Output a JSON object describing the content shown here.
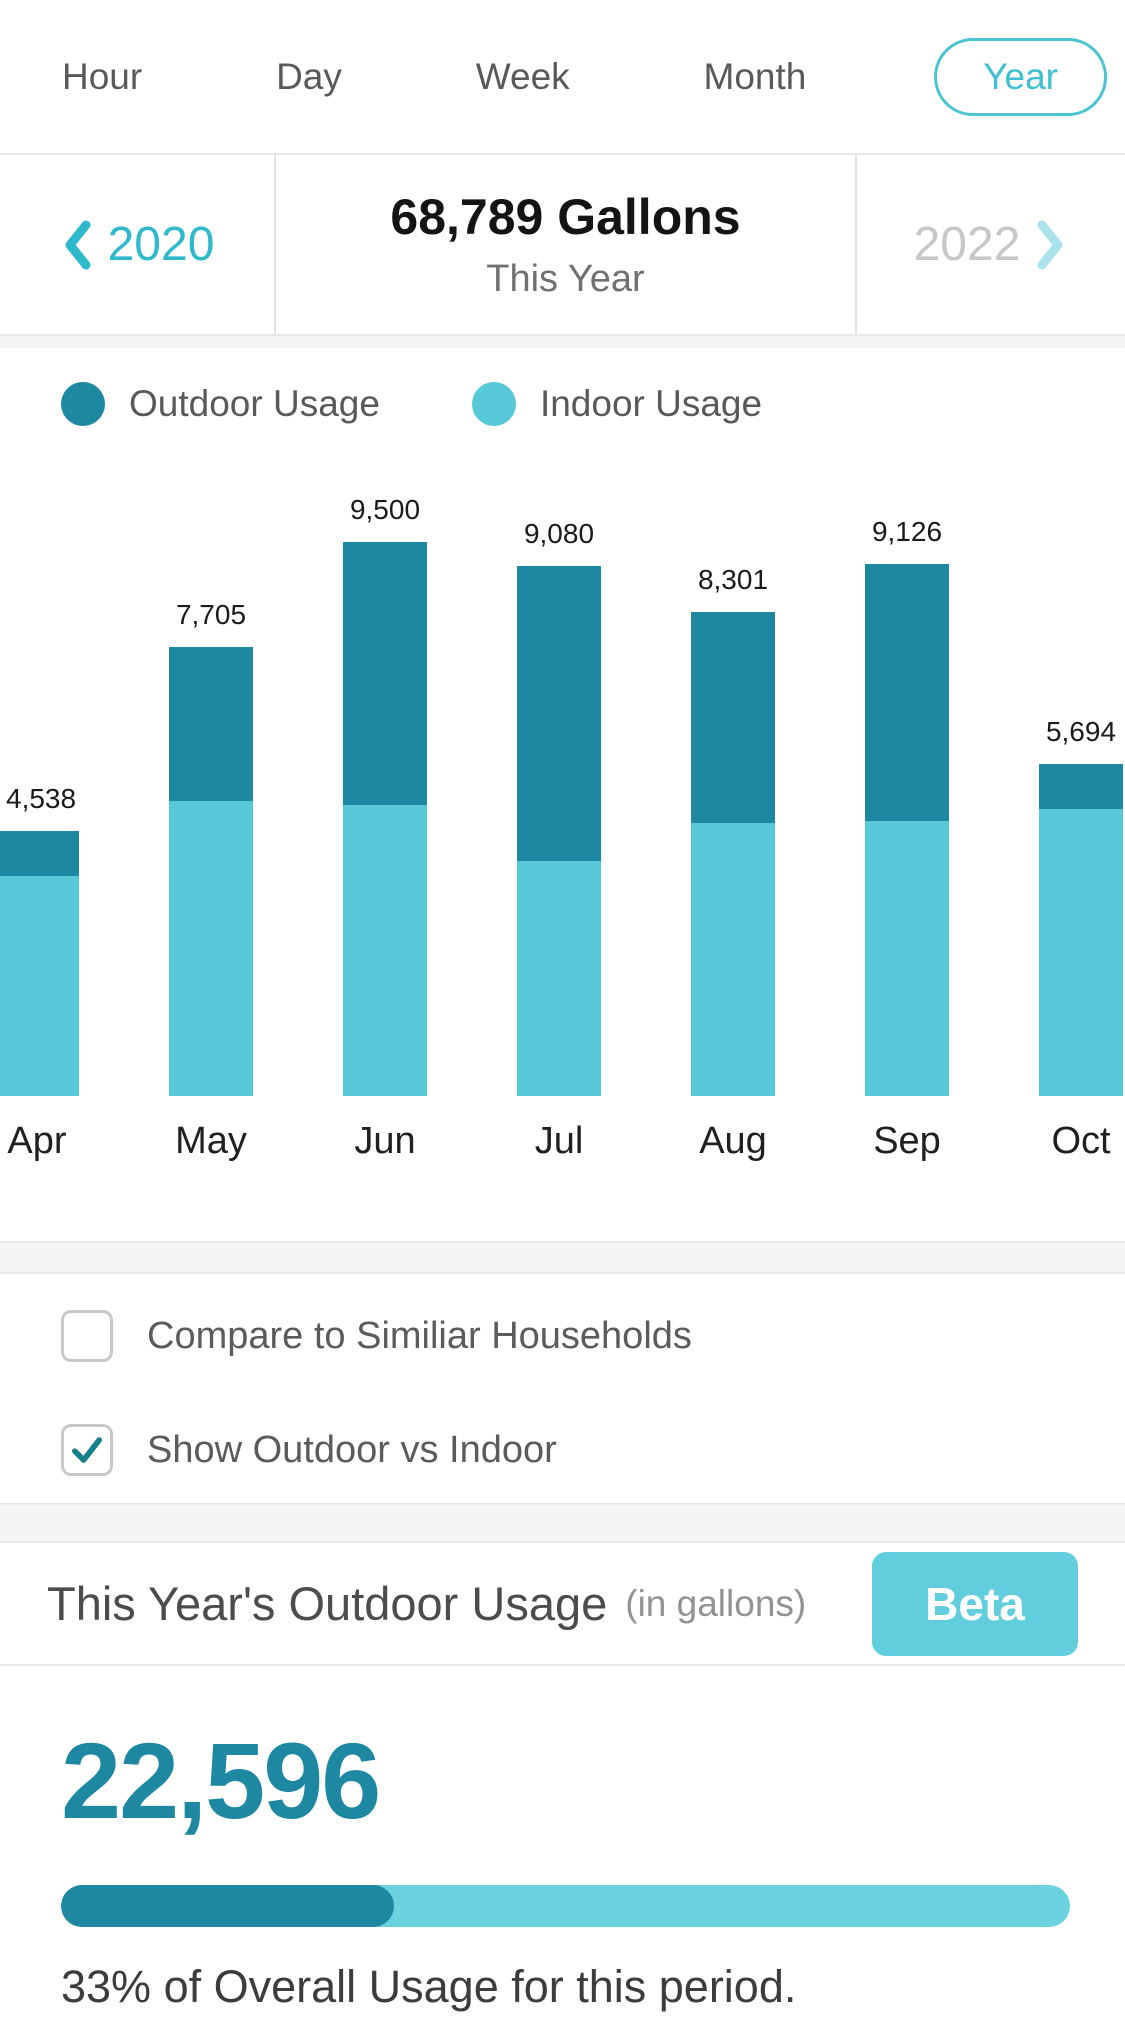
{
  "colors": {
    "outdoor": "#1E87A2",
    "indoor": "#56C8D8",
    "accent_teal": "#3FBFCF",
    "prev_arrow": "#2FB9CD",
    "next_arrow": "#ABE3EC",
    "beta_bg": "#62CDDC",
    "progress_track": "#6BD2DF",
    "progress_fill": "#1E87A2",
    "big_number": "#1E87A2"
  },
  "tabs": {
    "items": [
      "Hour",
      "Day",
      "Week",
      "Month",
      "Year"
    ],
    "active": "Year"
  },
  "year_nav": {
    "prev_year": "2020",
    "total": "68,789 Gallons",
    "subtitle": "This Year",
    "next_year": "2022"
  },
  "legend": {
    "outdoor_label": "Outdoor Usage",
    "indoor_label": "Indoor Usage"
  },
  "chart_data": {
    "type": "bar",
    "stacked": true,
    "categories": [
      "Apr",
      "May",
      "Jun",
      "Jul",
      "Aug",
      "Sep",
      "Oct"
    ],
    "series": [
      {
        "name": "Indoor Usage",
        "color": "#56C8D8",
        "values": [
          3765,
          5065,
          4995,
          4030,
          4675,
          4720,
          4920
        ]
      },
      {
        "name": "Outdoor Usage",
        "color": "#1E87A2",
        "values": [
          773,
          2640,
          4505,
          5050,
          3626,
          4406,
          774
        ]
      }
    ],
    "totals": [
      4538,
      7705,
      9500,
      9080,
      8301,
      9126,
      5694
    ],
    "total_labels": [
      "4,538",
      "7,705",
      "9,500",
      "9,080",
      "8,301",
      "9,126",
      "5,694"
    ],
    "xlabel": "",
    "ylabel": "",
    "ylim": [
      0,
      9500
    ],
    "legend_position": "top",
    "grid": false
  },
  "options": {
    "compare": {
      "label": "Compare to Similiar Households",
      "checked": false
    },
    "show_split": {
      "label": "Show Outdoor vs Indoor",
      "checked": true
    }
  },
  "outdoor_usage": {
    "title": "This Year's Outdoor Usage",
    "unit_note": "(in gallons)",
    "beta_label": "Beta",
    "value": "22,596",
    "percent": 33,
    "caption": "33% of Overall Usage for this period."
  }
}
